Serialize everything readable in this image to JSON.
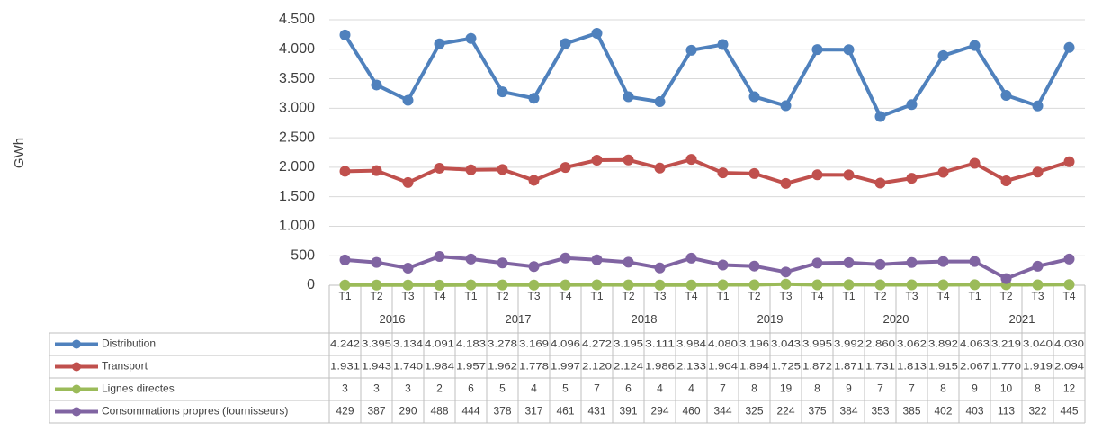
{
  "chart_data": {
    "type": "line",
    "y_label": "GWh",
    "categories": [
      "T1",
      "T2",
      "T3",
      "T4",
      "T1",
      "T2",
      "T3",
      "T4",
      "T1",
      "T2",
      "T3",
      "T4",
      "T1",
      "T2",
      "T3",
      "T4",
      "T1",
      "T2",
      "T3",
      "T4",
      "T1",
      "T2",
      "T3",
      "T4"
    ],
    "years": [
      "2016",
      "2017",
      "2018",
      "2019",
      "2020",
      "2021"
    ],
    "ylim": [
      0,
      4500
    ],
    "yticks": [
      0,
      500,
      {
        "value": 1000,
        "label": "1.000"
      },
      {
        "value": 1500,
        "label": "1.500"
      },
      {
        "value": 2000,
        "label": "2.000"
      },
      {
        "value": 2500,
        "label": "2.500"
      },
      {
        "value": 3000,
        "label": "3.000"
      },
      {
        "value": 3500,
        "label": "3.500"
      },
      {
        "value": 4000,
        "label": "4.000"
      },
      {
        "value": 4500,
        "label": "4.500"
      }
    ],
    "grid": true,
    "series": [
      {
        "name": "Distribution",
        "color": "#4f81bd",
        "values": [
          4242,
          3395,
          3134,
          4091,
          4183,
          3278,
          3169,
          4096,
          4272,
          3195,
          3111,
          3984,
          4080,
          3196,
          3043,
          3995,
          3992,
          2860,
          3062,
          3892,
          4063,
          3219,
          3040,
          4030
        ],
        "value_labels": [
          "4.242",
          "3.395",
          "3.134",
          "4.091",
          "4.183",
          "3.278",
          "3.169",
          "4.096",
          "4.272",
          "3.195",
          "3.111",
          "3.984",
          "4.080",
          "3.196",
          "3.043",
          "3.995",
          "3.992",
          "2.860",
          "3.062",
          "3.892",
          "4.063",
          "3.219",
          "3.040",
          "4.030"
        ]
      },
      {
        "name": "Transport",
        "color": "#c0504d",
        "values": [
          1931,
          1943,
          1740,
          1984,
          1957,
          1962,
          1778,
          1997,
          2120,
          2124,
          1986,
          2133,
          1904,
          1894,
          1725,
          1872,
          1871,
          1731,
          1813,
          1915,
          2067,
          1770,
          1919,
          2094
        ],
        "value_labels": [
          "1.931",
          "1.943",
          "1.740",
          "1.984",
          "1.957",
          "1.962",
          "1.778",
          "1.997",
          "2.120",
          "2.124",
          "1.986",
          "2.133",
          "1.904",
          "1.894",
          "1.725",
          "1.872",
          "1.871",
          "1.731",
          "1.813",
          "1.915",
          "2.067",
          "1.770",
          "1.919",
          "2.094"
        ]
      },
      {
        "name": "Lignes directes",
        "color": "#9bbb59",
        "values": [
          3,
          3,
          3,
          2,
          6,
          5,
          4,
          5,
          7,
          6,
          4,
          4,
          7,
          8,
          19,
          8,
          9,
          7,
          7,
          8,
          9,
          10,
          8,
          12
        ]
      },
      {
        "name": "Consommations propres (fournisseurs)",
        "color": "#8064a2",
        "values": [
          429,
          387,
          290,
          488,
          444,
          378,
          317,
          461,
          431,
          391,
          294,
          460,
          344,
          325,
          224,
          375,
          384,
          353,
          385,
          402,
          403,
          113,
          322,
          445
        ]
      }
    ]
  }
}
